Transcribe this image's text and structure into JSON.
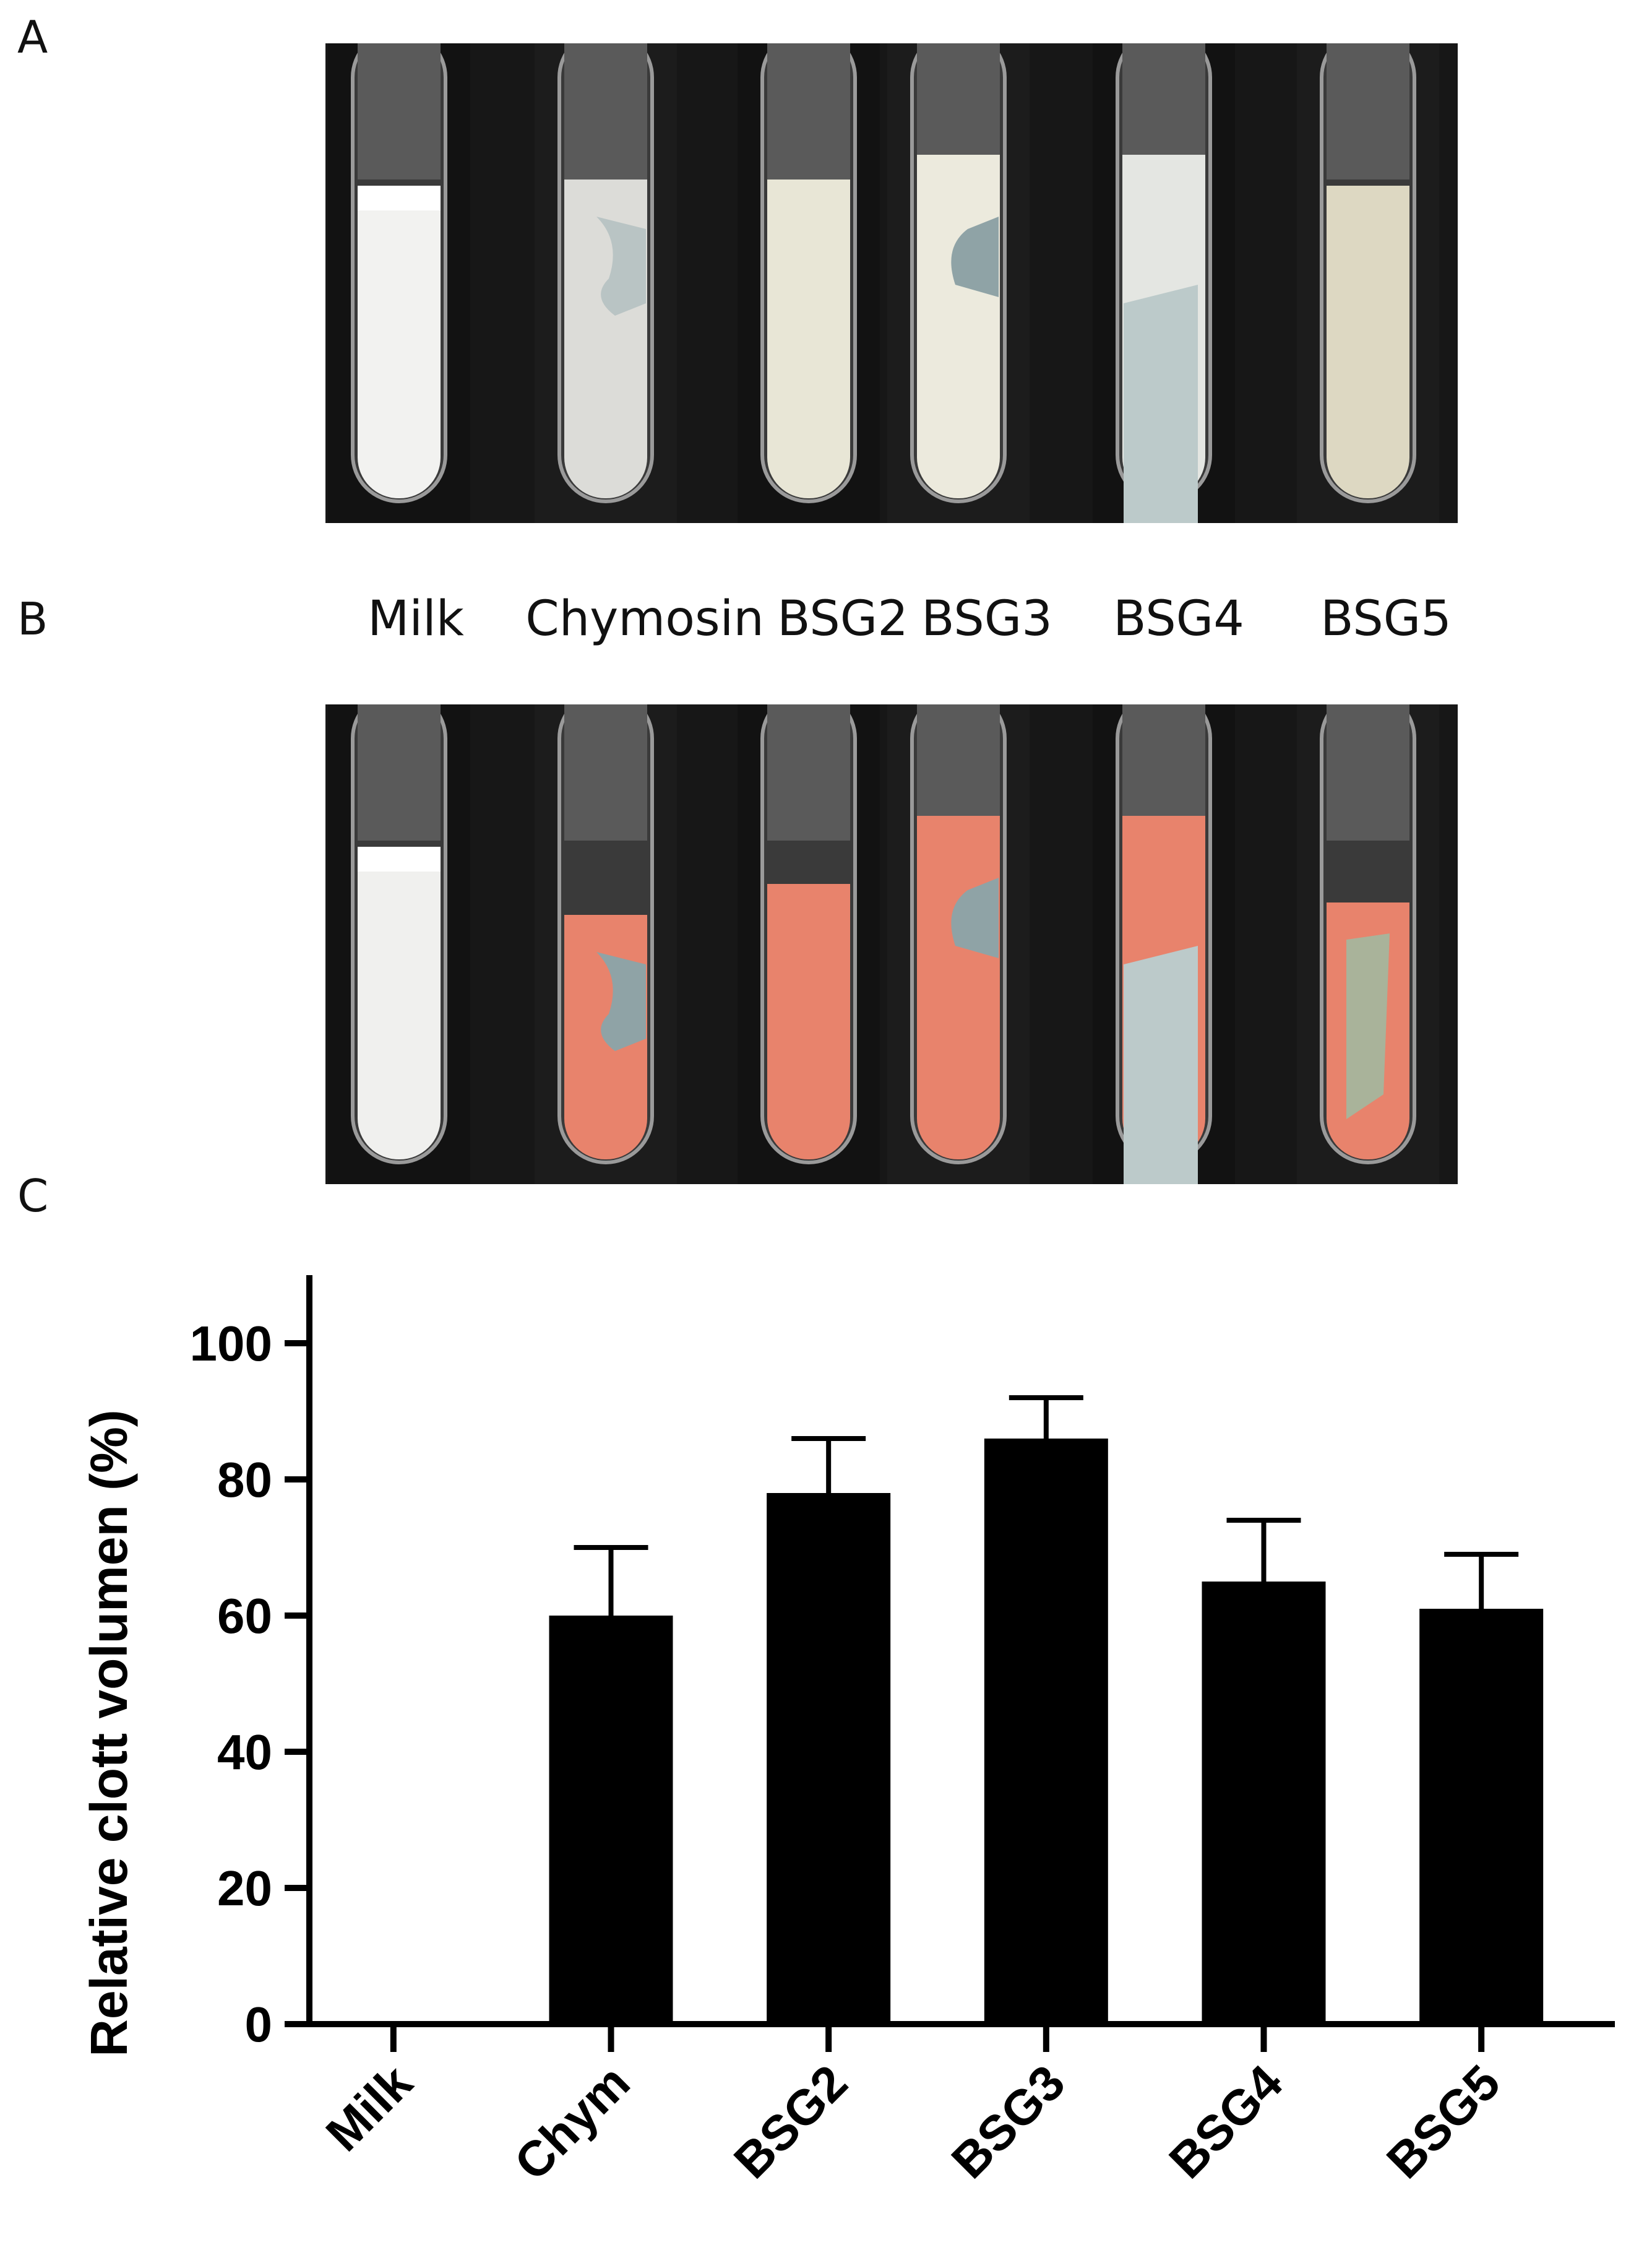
{
  "panels": {
    "a": "A",
    "b": "B",
    "c": "C"
  },
  "tube_labels": [
    "Milk",
    "Chymosin",
    "BSG2",
    "BSG3",
    "BSG4",
    "BSG5"
  ],
  "colors": {
    "stain": "#e8836c",
    "milk": "#f2f2f0",
    "bar": "#000000"
  },
  "chart_data": {
    "type": "bar",
    "categories": [
      "Milk",
      "Chym",
      "BSG2",
      "BSG3",
      "BSG4",
      "BSG5"
    ],
    "values": [
      0,
      60,
      78,
      86,
      65,
      61
    ],
    "errors": [
      0,
      10,
      8,
      6,
      9,
      8
    ],
    "ylabel": "Relative clott volumen (%)",
    "xlabel": "",
    "ylim": [
      0,
      110
    ],
    "yticks": [
      0,
      20,
      40,
      60,
      80,
      100
    ],
    "grid": false,
    "legend": "none"
  }
}
